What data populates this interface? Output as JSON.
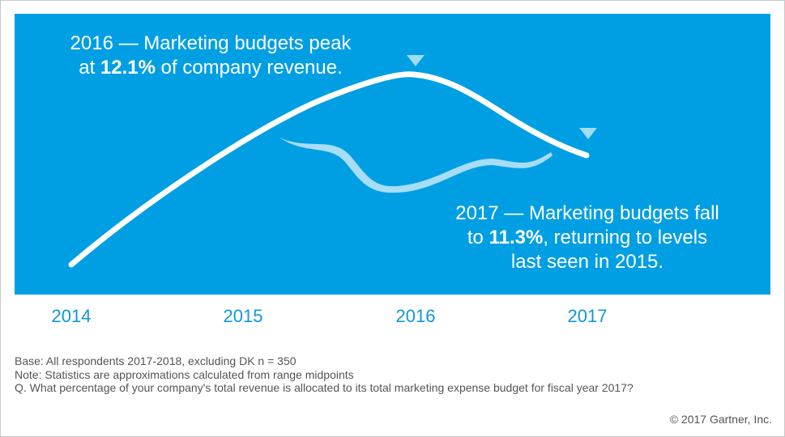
{
  "chart_data": {
    "type": "line",
    "categories": [
      "2014",
      "2015",
      "2016",
      "2017"
    ],
    "series": [
      {
        "values": [
          null,
          null,
          12.1,
          11.3
        ]
      }
    ],
    "markers": [
      {
        "x": "2016",
        "label": "peak"
      },
      {
        "x": "2017",
        "label": "fall"
      }
    ],
    "annotations": [
      {
        "id": "peak",
        "parts": [
          {
            "text": "2016 — Marketing budgets peak",
            "bold": false,
            "br": true
          },
          {
            "text": "at ",
            "bold": false
          },
          {
            "text": "12.1%",
            "bold": true
          },
          {
            "text": " of company revenue.",
            "bold": false
          }
        ]
      },
      {
        "id": "fall",
        "parts": [
          {
            "text": "2017 — Marketing budgets fall",
            "bold": false,
            "br": true
          },
          {
            "text": "to ",
            "bold": false
          },
          {
            "text": "11.3%",
            "bold": true
          },
          {
            "text": ", returning to levels",
            "bold": false,
            "br": true
          },
          {
            "text": "last seen in 2015.",
            "bold": false
          }
        ]
      }
    ],
    "grid": false,
    "colors": {
      "background": "#009fe3",
      "line": "#ffffff",
      "wave": "#b9e3f7",
      "marker": "#9fdcf5",
      "tick": "#0f98d8"
    }
  },
  "notes": [
    "Base: All respondents 2017-2018, excluding DK n = 350",
    "Note: Statistics are approximations calculated from range midpoints",
    "Q. What percentage of your company's total revenue is allocated to its total marketing expense budget for fiscal year 2017?"
  ],
  "copyright": "© 2017 Gartner, Inc."
}
